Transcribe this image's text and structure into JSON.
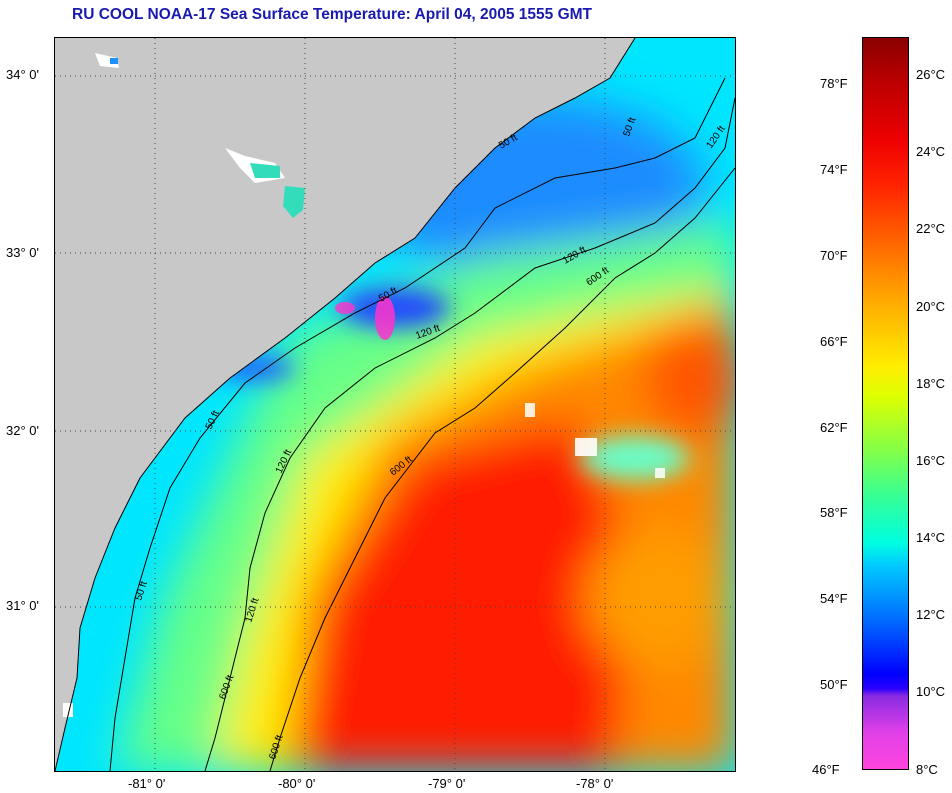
{
  "title": "RU COOL  NOAA-17  Sea Surface Temperature:  April 04, 2005 1555 GMT",
  "map": {
    "latitude_labels": [
      "34° 0'",
      "33° 0'",
      "32° 0'",
      "31° 0'"
    ],
    "longitude_labels": [
      "-81° 0'",
      "-80° 0'",
      "-79° 0'",
      "-78° 0'"
    ],
    "isobath_labels": [
      "50 ft",
      "50 ft",
      "50 ft",
      "50 ft",
      "50 ft",
      "120 ft",
      "120 ft",
      "120 ft",
      "120 ft",
      "120 ft",
      "600 ft",
      "600 ft",
      "600 ft",
      "600 ft"
    ],
    "land_color": "#c8c8c8"
  },
  "colorbar": {
    "fahrenheit_labels": [
      "78°F",
      "74°F",
      "70°F",
      "66°F",
      "62°F",
      "58°F",
      "54°F",
      "50°F",
      "46°F"
    ],
    "celsius_labels": [
      "26°C",
      "24°C",
      "22°C",
      "20°C",
      "18°C",
      "16°C",
      "14°C",
      "12°C",
      "10°C",
      "8°C"
    ]
  }
}
